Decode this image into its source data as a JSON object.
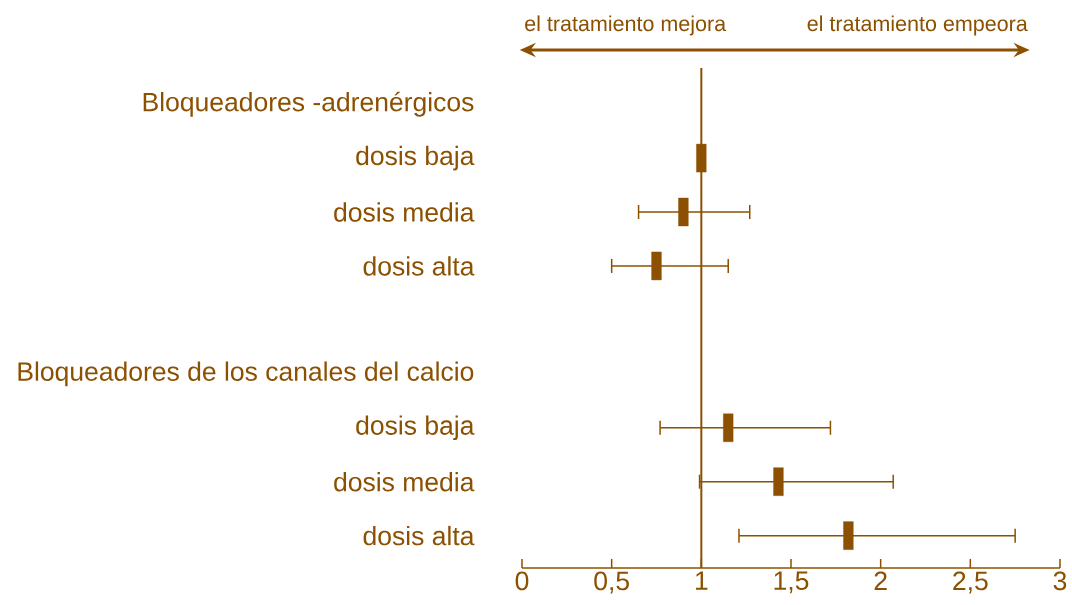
{
  "chart_data": {
    "type": "scatter",
    "orientation": "horizontal",
    "categories": [
      "Bloqueadores   -adrenérgicos",
      "dosis baja",
      "dosis media",
      "dosis alta",
      null,
      "Bloqueadores de los canales del calcio",
      "dosis baja",
      "dosis media",
      "dosis alta"
    ],
    "series": [
      {
        "color": "#8c5000",
        "values": [
          null,
          1.0,
          0.9,
          0.75,
          null,
          null,
          1.15,
          1.43,
          1.82
        ],
        "errors": [
          null,
          null,
          [
            0.65,
            1.27
          ],
          [
            0.5,
            1.15
          ],
          null,
          null,
          [
            0.77,
            1.72
          ],
          [
            0.99,
            2.07
          ],
          [
            1.21,
            2.75
          ]
        ]
      }
    ],
    "xlim": [
      0,
      3
    ],
    "xticks": [
      0,
      {
        "value": 0.5,
        "label": "0,5"
      },
      1,
      {
        "value": 1.5,
        "label": "1,5"
      },
      2,
      {
        "value": 2.5,
        "label": "2,5"
      },
      3
    ],
    "ref_lines": [
      {
        "axis": "x",
        "value": 1
      }
    ],
    "annotations": [
      "el tratamiento mejora",
      "el tratamiento empeora"
    ]
  }
}
